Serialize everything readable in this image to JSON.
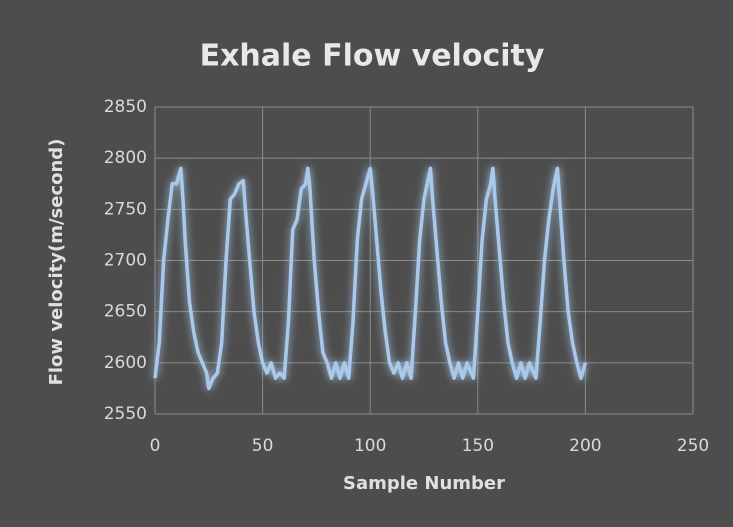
{
  "chart_data": {
    "type": "line",
    "title": "Exhale Flow velocity",
    "x_label": "Sample Number",
    "y_label": "Flow velocity(m/second)",
    "color": "#a9c9ea",
    "grid": true,
    "xlim": [
      0,
      250
    ],
    "xticks": [
      0,
      50,
      100,
      150,
      200,
      250
    ],
    "ylim": [
      2550,
      2850
    ],
    "yticks": [
      2550,
      2600,
      2650,
      2700,
      2750,
      2800,
      2850
    ],
    "x": [
      0,
      2,
      4,
      6,
      8,
      10,
      12,
      13,
      14,
      16,
      18,
      20,
      22,
      24,
      25,
      27,
      29,
      31,
      33,
      35,
      37,
      39,
      41,
      42,
      44,
      46,
      48,
      50,
      52,
      54,
      56,
      58,
      60,
      62,
      64,
      66,
      68,
      70,
      71,
      72,
      74,
      76,
      78,
      80,
      82,
      84,
      86,
      88,
      90,
      92,
      94,
      96,
      98,
      100,
      101,
      103,
      105,
      107,
      109,
      111,
      113,
      115,
      117,
      119,
      121,
      123,
      125,
      127,
      128,
      129,
      131,
      133,
      135,
      137,
      139,
      141,
      143,
      145,
      148,
      150,
      152,
      154,
      156,
      157,
      158,
      160,
      162,
      164,
      166,
      168,
      170,
      172,
      174,
      177,
      179,
      181,
      183,
      185,
      187,
      188,
      190,
      192,
      194,
      196,
      198,
      200
    ],
    "values": [
      2585,
      2620,
      2700,
      2740,
      2775,
      2775,
      2790,
      2760,
      2720,
      2660,
      2630,
      2610,
      2600,
      2590,
      2575,
      2585,
      2590,
      2620,
      2700,
      2760,
      2765,
      2775,
      2778,
      2750,
      2700,
      2650,
      2620,
      2600,
      2590,
      2600,
      2585,
      2590,
      2585,
      2640,
      2730,
      2740,
      2770,
      2775,
      2790,
      2770,
      2700,
      2650,
      2610,
      2600,
      2585,
      2600,
      2585,
      2600,
      2585,
      2640,
      2720,
      2760,
      2775,
      2790,
      2770,
      2720,
      2670,
      2630,
      2600,
      2590,
      2600,
      2585,
      2600,
      2585,
      2650,
      2720,
      2760,
      2780,
      2790,
      2760,
      2710,
      2660,
      2620,
      2600,
      2585,
      2600,
      2585,
      2600,
      2585,
      2650,
      2720,
      2760,
      2775,
      2790,
      2760,
      2710,
      2660,
      2620,
      2600,
      2585,
      2600,
      2585,
      2600,
      2585,
      2640,
      2700,
      2740,
      2770,
      2790,
      2760,
      2700,
      2650,
      2620,
      2600,
      2585,
      2600
    ]
  }
}
